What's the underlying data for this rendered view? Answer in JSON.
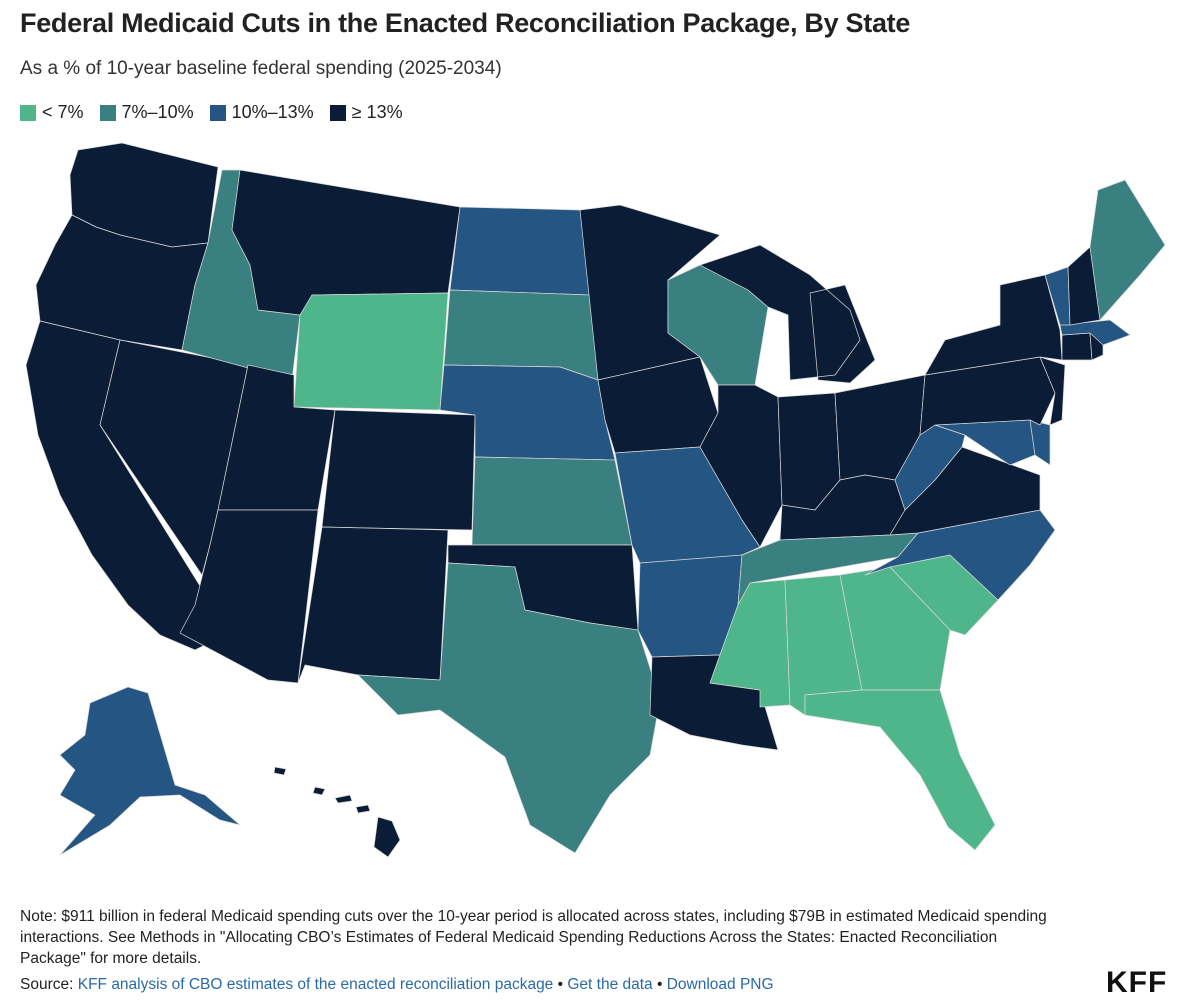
{
  "title": "Federal Medicaid Cuts in the Enacted Reconciliation Package, By State",
  "subtitle": "As a % of 10-year baseline federal spending (2025-2034)",
  "legend": [
    {
      "label": "< 7%",
      "color": "#4fb58a"
    },
    {
      "label": "7%–10%",
      "color": "#3a8080"
    },
    {
      "label": "10%–13%",
      "color": "#245583"
    },
    {
      "label": "≥ 13%",
      "color": "#0b1c36"
    }
  ],
  "chart_data": {
    "type": "choropleth",
    "title": "Federal Medicaid Cuts in the Enacted Reconciliation Package, By State",
    "measure": "Federal Medicaid cuts as a % of 10-year baseline federal spending (2025-2034)",
    "bins": [
      "< 7%",
      "7%–10%",
      "10%–13%",
      "≥ 13%"
    ],
    "states": {
      "WA": 3,
      "OR": 3,
      "CA": 3,
      "NV": 3,
      "ID": 1,
      "MT": 3,
      "WY": 0,
      "UT": 3,
      "AZ": 3,
      "CO": 3,
      "NM": 3,
      "ND": 2,
      "SD": 1,
      "NE": 2,
      "KS": 1,
      "OK": 3,
      "TX": 1,
      "MN": 3,
      "IA": 3,
      "MO": 2,
      "AR": 2,
      "LA": 3,
      "WI": 1,
      "IL": 3,
      "MI": 3,
      "IN": 3,
      "OH": 3,
      "KY": 3,
      "TN": 1,
      "MS": 0,
      "AL": 0,
      "GA": 0,
      "FL": 0,
      "SC": 0,
      "NC": 2,
      "VA": 3,
      "WV": 2,
      "MD": 2,
      "DE": 2,
      "PA": 3,
      "NJ": 3,
      "NY": 3,
      "CT": 3,
      "RI": 3,
      "MA": 2,
      "VT": 2,
      "NH": 3,
      "ME": 1,
      "AK": 2,
      "HI": 3
    }
  },
  "note": "Note: $911 billion in federal Medicaid spending cuts over the 10-year period is allocated across states, including $79B in estimated Medicaid spending interactions. See Methods in \"Allocating CBO’s Estimates of Federal Medicaid Spending Reductions Across the States: Enacted Reconciliation Package\" for more details.",
  "source": {
    "prefix": "Source: ",
    "link1": "KFF analysis of CBO estimates of the enacted reconciliation package",
    "sep1": " • ",
    "link2": "Get the data",
    "sep2": " • ",
    "link3": "Download PNG"
  },
  "logo": "KFF"
}
